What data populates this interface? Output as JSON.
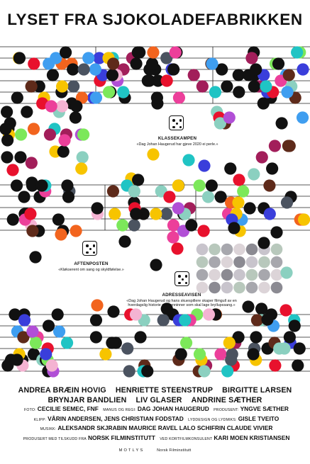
{
  "title": "LYSET FRA SJOKOLADEFABRIKKEN",
  "reviews": [
    {
      "source": "KLASSEKAMPEN",
      "quote": "«Dag Johan Haugerud har gjeve 2020 ei perle.»"
    },
    {
      "source": "AFTENPOSTEN",
      "quote": "«Kløkserent om sang og skyldfølelse.»"
    },
    {
      "source": "ADRESSEAVISEN",
      "quote": "«Dag Johan Haugerud og hans skuespillere skaper filmgull av en hverdagslig historie om venninner som skal lage bryllupssang.»"
    }
  ],
  "ratings": [
    5,
    5,
    5
  ],
  "cast": {
    "row1": [
      "ANDREA BRÆIN HOVIG",
      "HENRIETTE STEENSTRUP",
      "BIRGITTE LARSEN"
    ],
    "row2": [
      "BRYNJAR BANDLIEN",
      "LIV GLASER",
      "ANDRINE SÆTHER"
    ]
  },
  "crew": [
    [
      [
        "FOTO:",
        "CECILIE SEMEC, FNF"
      ],
      [
        "MANUS OG REGI:",
        "DAG JOHAN HAUGERUD"
      ],
      [
        "PRODUSENT:",
        "YNGVE SÆTHER"
      ]
    ],
    [
      [
        "KLIPP:",
        "VÅRIN ANDERSEN, JENS CHRISTIAN FODSTAD"
      ],
      [
        "LYDDESIGN OG LYDMIKS:",
        "GISLE TVEITO"
      ]
    ],
    [
      [
        "MUSIKK:",
        "ALEKSANDR SKJRABIN  MAURICE RAVEL  LALO SCHIFRIN  CLAUDE VIVIER"
      ]
    ],
    [
      [
        "PRODUSERT MED TILSKUDD FRA",
        "NORSK FILMINSTITUTT"
      ],
      [
        "VED KORTFILMKONSULENT",
        "KARI MOEN KRISTIANSEN"
      ]
    ]
  ],
  "logos": [
    "MOTLYS",
    "Norsk Filminstitutt"
  ],
  "palette": [
    "#111111",
    "#e8112d",
    "#f2641e",
    "#f7c400",
    "#b14fd6",
    "#ec3f9a",
    "#20c4c4",
    "#7ce85a",
    "#3f9ef0",
    "#3a3edb",
    "#a8b8b0",
    "#c8b8c8",
    "#5e2a1a",
    "#4b5360",
    "#f6a6b8",
    "#8bd0c0",
    "#f4b3d2",
    "#a21e5a"
  ]
}
